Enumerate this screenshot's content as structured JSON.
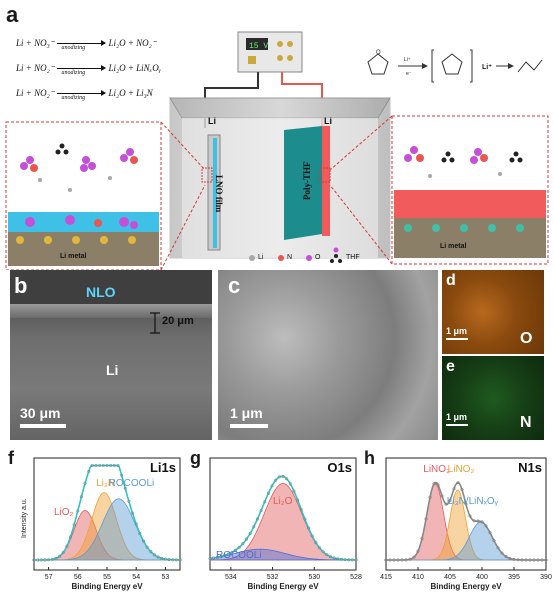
{
  "panel_a": {
    "label": "a",
    "equations": [
      {
        "lhs": "Li + NO₃⁻",
        "rhs": "Li₂O + NO₂⁻",
        "cond": "anodizing"
      },
      {
        "lhs": "Li + NO₂⁻",
        "rhs": "Li₂O + LiNₓOᵧ",
        "cond": "anodizing"
      },
      {
        "lhs": "Li + NO₂⁻",
        "rhs": "Li₂O + Li₃N",
        "cond": "anodizing"
      }
    ],
    "power_supply_display": "15 V",
    "electrode_left_label": "Li",
    "electrode_right_label": "Li",
    "film_label": "LNO film",
    "polymer_label": "Poly-THF",
    "metal_left": "Li metal",
    "metal_right": "Li metal",
    "thf_reaction_arrow_top": "Li⁺",
    "thf_reaction_arrow_bottom": "e⁻",
    "thf_reaction_reagent": "Li⁺",
    "legend": [
      "Li",
      "N",
      "O",
      "THF"
    ],
    "colors": {
      "Li": "#a8a8a8",
      "N": "#e8564e",
      "O": "#c54fd6",
      "THF": "#222222",
      "film": "#3fc0e6",
      "polymer": "#f25b5b"
    }
  },
  "panel_b": {
    "label": "b",
    "layer_label": "NLO",
    "thickness": "20 μm",
    "base_label": "Li",
    "scale_bar": "30 μm"
  },
  "panel_c": {
    "label": "c",
    "scale_bar": "1 μm"
  },
  "panel_d": {
    "label": "d",
    "element": "O",
    "scale_bar": "1 μm"
  },
  "panel_e": {
    "label": "e",
    "element": "N",
    "scale_bar": "1 μm"
  },
  "chart_data": [
    {
      "type": "line",
      "panel_label": "f",
      "title": "Li1s",
      "ylabel": "Intensity a.u.",
      "xlabel": "Binding Energy eV",
      "xlim": [
        57.5,
        52.5
      ],
      "xticks": [
        57,
        56,
        55,
        54,
        53
      ],
      "components": [
        {
          "name": "LiO₂",
          "center": 55.75,
          "height": 0.55,
          "width": 0.38,
          "color": "#e35b5b"
        },
        {
          "name": "Li₃N",
          "center": 55.1,
          "height": 0.75,
          "width": 0.42,
          "color": "#f0a030"
        },
        {
          "name": "ROCOOLi",
          "center": 54.6,
          "height": 0.68,
          "width": 0.55,
          "color": "#5b9bd5"
        }
      ],
      "envelope_color": "#2ec4c4"
    },
    {
      "type": "line",
      "panel_label": "g",
      "title": "O1s",
      "xlabel": "Binding Energy eV",
      "xlim": [
        535,
        528
      ],
      "xticks": [
        534,
        532,
        530,
        528
      ],
      "components": [
        {
          "name": "Li₂O",
          "center": 531.5,
          "height": 0.85,
          "width": 0.9,
          "color": "#e35b5b"
        },
        {
          "name": "ROCOOLi",
          "center": 532.6,
          "height": 0.12,
          "width": 1.2,
          "color": "#4a6fd6"
        }
      ],
      "envelope_color": "#2ec4c4"
    },
    {
      "type": "line",
      "panel_label": "h",
      "title": "N1s",
      "xlabel": "Binding Energy eV",
      "xlim": [
        415,
        390
      ],
      "xticks": [
        415,
        410,
        405,
        400,
        395,
        390
      ],
      "components": [
        {
          "name": "LiNO₃",
          "center": 407.3,
          "height": 0.85,
          "width": 1.3,
          "color": "#e35b5b"
        },
        {
          "name": "LiNO₂",
          "center": 403.8,
          "height": 0.78,
          "width": 1.2,
          "color": "#f0a030"
        },
        {
          "name": "Li₃N/LiNₓOᵧ",
          "center": 400.2,
          "height": 0.42,
          "width": 1.8,
          "color": "#5b9bd5"
        }
      ],
      "envelope_color": "#888888"
    }
  ]
}
